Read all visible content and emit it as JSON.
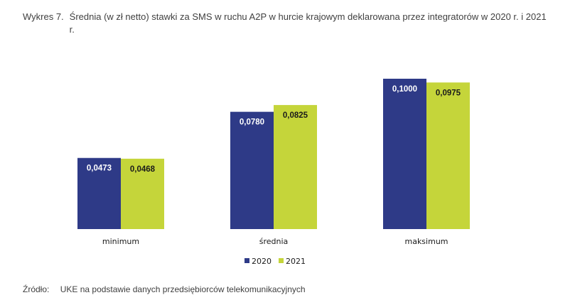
{
  "figure": {
    "number": "Wykres 7.",
    "title": "Średnia (w zł netto) stawki za SMS w ruchu A2P w hurcie krajowym deklarowana przez integratorów w 2020 r. i 2021 r."
  },
  "source": {
    "label": "Źródło:",
    "text": "UKE na podstawie danych przedsiębiorców telekomunikacyjnych"
  },
  "chart_data": {
    "type": "bar",
    "categories": [
      "minimum",
      "średnia",
      "maksimum"
    ],
    "series": [
      {
        "name": "2020",
        "color": "#2E3A87",
        "values": [
          0.0473,
          0.078,
          0.1
        ],
        "labels": [
          "0,0473",
          "0,0780",
          "0,1000"
        ]
      },
      {
        "name": "2021",
        "color": "#C5D53A",
        "values": [
          0.0468,
          0.0825,
          0.0975
        ],
        "labels": [
          "0,0468",
          "0,0825",
          "0,0975"
        ]
      }
    ],
    "ylim": [
      0,
      0.1
    ],
    "grid": false,
    "legend": "bottom"
  }
}
